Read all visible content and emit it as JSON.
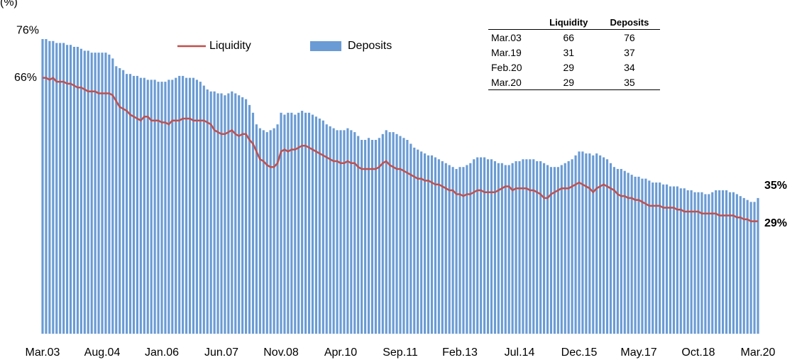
{
  "chart_data": {
    "type": "bar-line",
    "unit": "(%)",
    "categories": [
      "Mar.03",
      null,
      null,
      null,
      null,
      null,
      null,
      null,
      null,
      null,
      null,
      null,
      null,
      null,
      null,
      null,
      null,
      "Aug.04",
      null,
      null,
      null,
      null,
      null,
      null,
      null,
      null,
      null,
      null,
      null,
      null,
      null,
      null,
      null,
      null,
      "Jan.06",
      null,
      null,
      null,
      null,
      null,
      null,
      null,
      null,
      null,
      null,
      null,
      null,
      null,
      null,
      null,
      null,
      "Jun.07",
      null,
      null,
      null,
      null,
      null,
      null,
      null,
      null,
      null,
      null,
      null,
      null,
      null,
      null,
      null,
      null,
      "Nov.08",
      null,
      null,
      null,
      null,
      null,
      null,
      null,
      null,
      null,
      null,
      null,
      null,
      null,
      null,
      null,
      null,
      "Apr.10",
      null,
      null,
      null,
      null,
      null,
      null,
      null,
      null,
      null,
      null,
      null,
      null,
      null,
      null,
      null,
      null,
      "Sep.11",
      null,
      null,
      null,
      null,
      null,
      null,
      null,
      null,
      null,
      null,
      null,
      null,
      null,
      null,
      null,
      null,
      "Feb.13",
      null,
      null,
      null,
      null,
      null,
      null,
      null,
      null,
      null,
      null,
      null,
      null,
      null,
      null,
      null,
      null,
      "Jul.14",
      null,
      null,
      null,
      null,
      null,
      null,
      null,
      null,
      null,
      null,
      null,
      null,
      null,
      null,
      null,
      null,
      "Dec.15",
      null,
      null,
      null,
      null,
      null,
      null,
      null,
      null,
      null,
      null,
      null,
      null,
      null,
      null,
      null,
      null,
      "May.17",
      null,
      null,
      null,
      null,
      null,
      null,
      null,
      null,
      null,
      null,
      null,
      null,
      null,
      null,
      null,
      null,
      "Oct.18",
      null,
      null,
      null,
      null,
      null,
      null,
      null,
      null,
      null,
      null,
      null,
      null,
      null,
      null,
      null,
      null,
      "Mar.20"
    ],
    "series": [
      {
        "name": "Liquidity",
        "kind": "line",
        "color": "#c0504d",
        "values": [
          66,
          66,
          65.5,
          66,
          65,
          65,
          65,
          64.5,
          64.5,
          64,
          63.5,
          63.5,
          63,
          62.5,
          62.5,
          62.5,
          62,
          62,
          62,
          62,
          61.5,
          60,
          58.5,
          58,
          57.5,
          56.5,
          56,
          55.5,
          55,
          56,
          56,
          55,
          55,
          55,
          54.5,
          54.5,
          54,
          55,
          55,
          55,
          55.5,
          55.5,
          55.5,
          55,
          55,
          55,
          55,
          54.5,
          54,
          52.5,
          52,
          51.5,
          51.5,
          52,
          52.5,
          51.5,
          51,
          51.5,
          51.5,
          50,
          49,
          47,
          45,
          44.5,
          43.5,
          43,
          43,
          44,
          47,
          47.5,
          47,
          47.5,
          47.5,
          48,
          48.5,
          48.5,
          48,
          47.5,
          47,
          46.5,
          46,
          45.5,
          45,
          44.5,
          44.5,
          44,
          44,
          44.5,
          44,
          44,
          43,
          42.5,
          42.5,
          42.5,
          42.5,
          42.5,
          43,
          44,
          44.5,
          43.5,
          43,
          42.5,
          42.5,
          42,
          41.5,
          41,
          40.5,
          40,
          40,
          39.5,
          39.5,
          39,
          38.5,
          38.5,
          38,
          37.5,
          37,
          37,
          36,
          36,
          35.5,
          36,
          36,
          36.5,
          37,
          37,
          36.5,
          36.5,
          36.5,
          36.5,
          37,
          37.5,
          38,
          38,
          37,
          37.5,
          37.5,
          37.5,
          37.5,
          37,
          37,
          36.5,
          36,
          35,
          35,
          36,
          36.5,
          37,
          37.5,
          37.5,
          37.5,
          38,
          38.5,
          39,
          38.5,
          38,
          37.5,
          36.5,
          37.5,
          38,
          38.5,
          38,
          37.5,
          37,
          36,
          35.5,
          35.5,
          35,
          35,
          34.5,
          34.5,
          34,
          33.5,
          33,
          33,
          33,
          33,
          32.5,
          32.5,
          32.5,
          32.5,
          32,
          32,
          31.5,
          31.5,
          31.5,
          31.5,
          31.5,
          31,
          31,
          31,
          31,
          31,
          30.5,
          30.5,
          30.5,
          30.5,
          30.5,
          30,
          30,
          29.5,
          29.5,
          29,
          29,
          29
        ]
      },
      {
        "name": "Deposits",
        "kind": "bar",
        "color": "#6a9bd4",
        "values": [
          76,
          76,
          75.5,
          75.5,
          75,
          75,
          75,
          74.5,
          74.5,
          74,
          74,
          73.5,
          73,
          73,
          72.5,
          72.5,
          72.5,
          72.5,
          72.5,
          72,
          71,
          69,
          68.5,
          68,
          67,
          67,
          66.5,
          66.5,
          66,
          66,
          65.5,
          65.5,
          65.5,
          65,
          65,
          65,
          65.5,
          65.5,
          66,
          66.5,
          66.5,
          66,
          66,
          66,
          65.5,
          65,
          64,
          63,
          62.5,
          62.5,
          62,
          62,
          61.5,
          62,
          62.5,
          62,
          61.5,
          61,
          60.5,
          59,
          57,
          54,
          53,
          52.5,
          52,
          52.5,
          53,
          54,
          57,
          56.5,
          57,
          57,
          56.5,
          57,
          57.5,
          57,
          57,
          56.5,
          56,
          55.5,
          55,
          54,
          53.5,
          53,
          52.5,
          52.5,
          52.5,
          53,
          52.5,
          52,
          51,
          50,
          50,
          50.5,
          50,
          50,
          50.5,
          51.5,
          52.5,
          52,
          52,
          51.5,
          51,
          50.5,
          50,
          49,
          48,
          47.5,
          47,
          46.5,
          46,
          46,
          45.5,
          45,
          44.5,
          44,
          43.5,
          43,
          42.5,
          43,
          43,
          43.5,
          44,
          45,
          45.5,
          45.5,
          45.5,
          45,
          45,
          44.5,
          44,
          44,
          43.5,
          43.5,
          44,
          44.5,
          44.5,
          45,
          45,
          45,
          45,
          44.5,
          44.5,
          44,
          43.5,
          43,
          43,
          43,
          43.5,
          44,
          44.5,
          45,
          46,
          47,
          47,
          46.5,
          46.5,
          46,
          46.5,
          46,
          45.5,
          45,
          44,
          43,
          42.5,
          42.5,
          42,
          41.5,
          41,
          40.5,
          40.5,
          40,
          40,
          39.5,
          39,
          39,
          39,
          38.5,
          38.5,
          38,
          38,
          38,
          37.5,
          37.5,
          37,
          37,
          36.5,
          36.5,
          36.5,
          36,
          36,
          36.5,
          37,
          37,
          37,
          37,
          36.5,
          36.5,
          36,
          35.5,
          35,
          34.5,
          34,
          34,
          35
        ]
      }
    ],
    "ylim": [
      0,
      80
    ],
    "annotations": [
      {
        "text": "76%",
        "series": 1,
        "at": "start"
      },
      {
        "text": "66%",
        "series": 0,
        "at": "start"
      },
      {
        "text": "35%",
        "series": 1,
        "at": "end"
      },
      {
        "text": "29%",
        "series": 0,
        "at": "end"
      }
    ]
  },
  "table": {
    "columns": [
      "",
      "Liquidity",
      "Deposits"
    ],
    "rows": [
      [
        "Mar.03",
        "66",
        "76"
      ],
      [
        "Mar.19",
        "31",
        "37"
      ],
      [
        "Feb.20",
        "29",
        "34"
      ],
      [
        "Mar.20",
        "29",
        "35"
      ]
    ]
  }
}
